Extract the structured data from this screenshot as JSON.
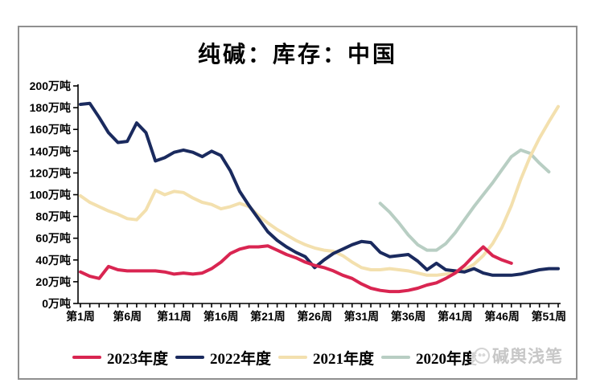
{
  "page": {
    "title": "纯碱：库存：中国"
  },
  "chart_data": {
    "type": "line",
    "title": "纯碱：库存：中国",
    "unit": "万吨",
    "ylim": [
      0,
      200
    ],
    "ystep": 20,
    "grid": false,
    "legend_position": "bottom",
    "y_tick_labels": [
      "0万吨",
      "20万吨",
      "40万吨",
      "60万吨",
      "80万吨",
      "100万吨",
      "120万吨",
      "140万吨",
      "160万吨",
      "180万吨",
      "200万吨"
    ],
    "x_tick_labels": [
      "第1周",
      "第6周",
      "第11周",
      "第16周",
      "第21周",
      "第26周",
      "第31周",
      "第36周",
      "第41周",
      "第46周",
      "第51周"
    ],
    "x_tick_weeks": [
      1,
      6,
      11,
      16,
      21,
      26,
      31,
      36,
      41,
      46,
      51
    ],
    "weeks_total": 52,
    "series": [
      {
        "name": "2023年度",
        "color": "#d92551",
        "start_week": 1,
        "values": [
          29,
          25,
          23,
          34,
          31,
          30,
          30,
          30,
          30,
          29,
          27,
          28,
          27,
          28,
          32,
          38,
          46,
          50,
          52,
          52,
          53,
          49,
          45,
          42,
          38,
          35,
          33,
          30,
          26,
          23,
          18,
          14,
          12,
          11,
          11,
          12,
          14,
          17,
          19,
          23,
          28,
          35,
          44,
          52,
          44,
          40,
          37
        ]
      },
      {
        "name": "2022年度",
        "color": "#1a2a5e",
        "start_week": 1,
        "values": [
          183,
          184,
          171,
          157,
          148,
          149,
          166,
          157,
          131,
          134,
          139,
          141,
          139,
          135,
          140,
          136,
          122,
          103,
          90,
          78,
          66,
          58,
          52,
          47,
          43,
          33,
          40,
          46,
          50,
          54,
          57,
          56,
          47,
          43,
          44,
          45,
          39,
          31,
          37,
          31,
          30,
          29,
          32,
          28,
          26,
          26,
          26,
          27,
          29,
          31,
          32,
          32
        ]
      },
      {
        "name": "2021年度",
        "color": "#f3e0ae",
        "start_week": 1,
        "values": [
          99,
          93,
          89,
          85,
          82,
          78,
          77,
          86,
          104,
          100,
          103,
          102,
          97,
          93,
          91,
          87,
          89,
          92,
          89,
          81,
          74,
          68,
          63,
          58,
          54,
          51,
          49,
          48,
          44,
          38,
          33,
          31,
          31,
          32,
          31,
          30,
          28,
          26,
          26,
          27,
          28,
          31,
          36,
          44,
          55,
          70,
          90,
          114,
          135,
          152,
          167,
          181
        ]
      },
      {
        "name": "2020年度",
        "color": "#b8cec3",
        "start_week": 33,
        "values": [
          92,
          84,
          74,
          63,
          54,
          49,
          49,
          55,
          65,
          77,
          89,
          100,
          111,
          123,
          135,
          141,
          138,
          129,
          121
        ]
      }
    ]
  },
  "watermark": {
    "icon": "account-logo",
    "text": "碱舆浅笔"
  }
}
